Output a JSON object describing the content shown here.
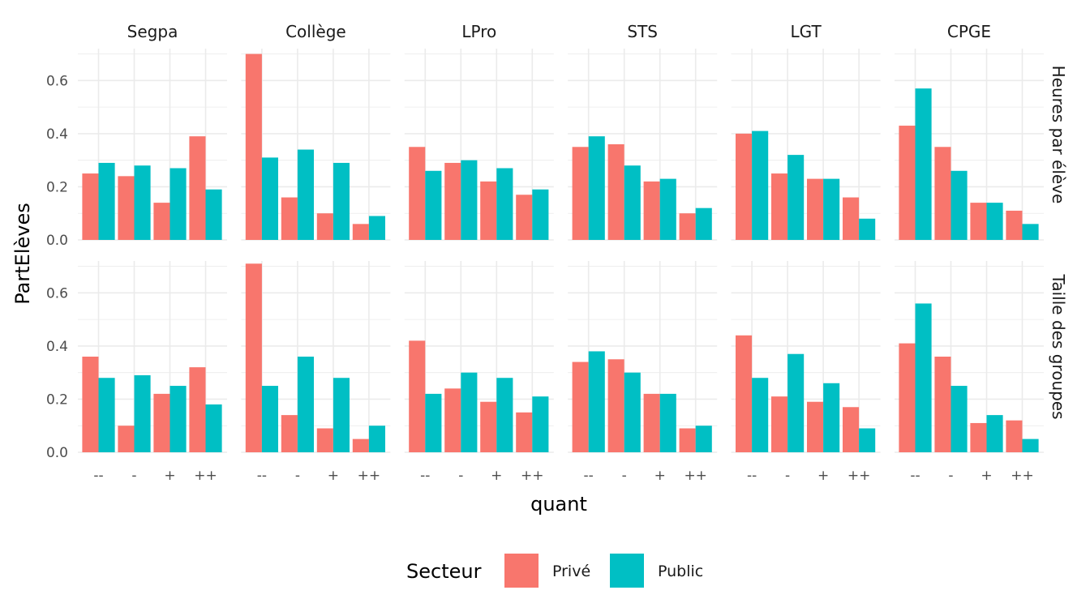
{
  "chart_data": {
    "type": "bar",
    "facet_columns": [
      "Segpa",
      "Collège",
      "LPro",
      "STS",
      "LGT",
      "CPGE"
    ],
    "facet_rows": [
      "Heures par élève",
      "Taille des groupes"
    ],
    "categories": [
      "--",
      "-",
      "+",
      "++"
    ],
    "xlabel": "quant",
    "ylabel": "PartElèves",
    "ylim": [
      0,
      0.72
    ],
    "yticks": [
      "0.0",
      "0.2",
      "0.4",
      "0.6"
    ],
    "grid": true,
    "legend": {
      "title": "Secteur",
      "position": "bottom",
      "entries": [
        {
          "name": "Privé",
          "color": "#F8766D"
        },
        {
          "name": "Public",
          "color": "#00BFC4"
        }
      ]
    },
    "panels": [
      {
        "row": "Heures par élève",
        "column": "Segpa",
        "series": [
          {
            "name": "Privé",
            "values": [
              0.25,
              0.24,
              0.14,
              0.39
            ]
          },
          {
            "name": "Public",
            "values": [
              0.29,
              0.28,
              0.27,
              0.19
            ]
          }
        ]
      },
      {
        "row": "Heures par élève",
        "column": "Collège",
        "series": [
          {
            "name": "Privé",
            "values": [
              0.7,
              0.16,
              0.1,
              0.06
            ]
          },
          {
            "name": "Public",
            "values": [
              0.31,
              0.34,
              0.29,
              0.09
            ]
          }
        ]
      },
      {
        "row": "Heures par élève",
        "column": "LPro",
        "series": [
          {
            "name": "Privé",
            "values": [
              0.35,
              0.29,
              0.22,
              0.17
            ]
          },
          {
            "name": "Public",
            "values": [
              0.26,
              0.3,
              0.27,
              0.19
            ]
          }
        ]
      },
      {
        "row": "Heures par élève",
        "column": "STS",
        "series": [
          {
            "name": "Privé",
            "values": [
              0.35,
              0.36,
              0.22,
              0.1
            ]
          },
          {
            "name": "Public",
            "values": [
              0.39,
              0.28,
              0.23,
              0.12
            ]
          }
        ]
      },
      {
        "row": "Heures par élève",
        "column": "LGT",
        "series": [
          {
            "name": "Privé",
            "values": [
              0.4,
              0.25,
              0.23,
              0.16
            ]
          },
          {
            "name": "Public",
            "values": [
              0.41,
              0.32,
              0.23,
              0.08
            ]
          }
        ]
      },
      {
        "row": "Heures par élève",
        "column": "CPGE",
        "series": [
          {
            "name": "Privé",
            "values": [
              0.43,
              0.35,
              0.14,
              0.11
            ]
          },
          {
            "name": "Public",
            "values": [
              0.57,
              0.26,
              0.14,
              0.06
            ]
          }
        ]
      },
      {
        "row": "Taille des groupes",
        "column": "Segpa",
        "series": [
          {
            "name": "Privé",
            "values": [
              0.36,
              0.1,
              0.22,
              0.32
            ]
          },
          {
            "name": "Public",
            "values": [
              0.28,
              0.29,
              0.25,
              0.18
            ]
          }
        ]
      },
      {
        "row": "Taille des groupes",
        "column": "Collège",
        "series": [
          {
            "name": "Privé",
            "values": [
              0.71,
              0.14,
              0.09,
              0.05
            ]
          },
          {
            "name": "Public",
            "values": [
              0.25,
              0.36,
              0.28,
              0.1
            ]
          }
        ]
      },
      {
        "row": "Taille des groupes",
        "column": "LPro",
        "series": [
          {
            "name": "Privé",
            "values": [
              0.42,
              0.24,
              0.19,
              0.15
            ]
          },
          {
            "name": "Public",
            "values": [
              0.22,
              0.3,
              0.28,
              0.21
            ]
          }
        ]
      },
      {
        "row": "Taille des groupes",
        "column": "STS",
        "series": [
          {
            "name": "Privé",
            "values": [
              0.34,
              0.35,
              0.22,
              0.09
            ]
          },
          {
            "name": "Public",
            "values": [
              0.38,
              0.3,
              0.22,
              0.1
            ]
          }
        ]
      },
      {
        "row": "Taille des groupes",
        "column": "LGT",
        "series": [
          {
            "name": "Privé",
            "values": [
              0.44,
              0.21,
              0.19,
              0.17
            ]
          },
          {
            "name": "Public",
            "values": [
              0.28,
              0.37,
              0.26,
              0.09
            ]
          }
        ]
      },
      {
        "row": "Taille des groupes",
        "column": "CPGE",
        "series": [
          {
            "name": "Privé",
            "values": [
              0.41,
              0.36,
              0.11,
              0.12
            ]
          },
          {
            "name": "Public",
            "values": [
              0.56,
              0.25,
              0.14,
              0.05
            ]
          }
        ]
      }
    ]
  }
}
